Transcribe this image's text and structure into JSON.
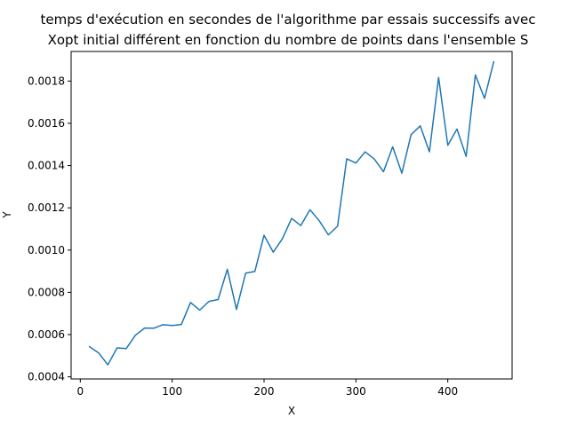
{
  "chart_data": {
    "type": "line",
    "title_lines": [
      "temps d'exécution en secondes de  l'algorithme par essais successifs avec",
      "Xopt initial différent en fonction du nombre de points dans l'ensemble S"
    ],
    "xlabel": "X",
    "ylabel": "Y",
    "xlim": [
      -10,
      470
    ],
    "ylim": [
      0.00039,
      0.00194
    ],
    "x_ticks": [
      0,
      100,
      200,
      300,
      400
    ],
    "x_tick_labels": [
      "0",
      "100",
      "200",
      "300",
      "400"
    ],
    "y_ticks": [
      0.0004,
      0.0006,
      0.0008,
      0.001,
      0.0012,
      0.0014,
      0.0016,
      0.0018
    ],
    "y_tick_labels": [
      "0.0004",
      "0.0006",
      "0.0008",
      "0.0010",
      "0.0012",
      "0.0014",
      "0.0016",
      "0.0018"
    ],
    "grid": false,
    "series": [
      {
        "color": "#1f77b4",
        "x": [
          10,
          20,
          30,
          40,
          50,
          60,
          70,
          80,
          90,
          100,
          110,
          120,
          130,
          140,
          150,
          160,
          170,
          180,
          190,
          200,
          210,
          220,
          230,
          240,
          250,
          260,
          270,
          280,
          290,
          300,
          310,
          320,
          330,
          340,
          350,
          360,
          370,
          380,
          390,
          400,
          410,
          420,
          430,
          440,
          450
        ],
        "values": [
          0.000543,
          0.000513,
          0.000457,
          0.000537,
          0.000534,
          0.000597,
          0.000631,
          0.00063,
          0.000647,
          0.000643,
          0.000648,
          0.000752,
          0.000716,
          0.000757,
          0.000766,
          0.000909,
          0.000719,
          0.000891,
          0.000899,
          0.00107,
          0.00099,
          0.001054,
          0.00115,
          0.001116,
          0.001191,
          0.001139,
          0.001072,
          0.001113,
          0.001432,
          0.001412,
          0.001465,
          0.001431,
          0.001371,
          0.001489,
          0.001364,
          0.001546,
          0.001588,
          0.001465,
          0.001817,
          0.001496,
          0.001573,
          0.001443,
          0.001829,
          0.001718,
          0.001891
        ]
      }
    ]
  }
}
